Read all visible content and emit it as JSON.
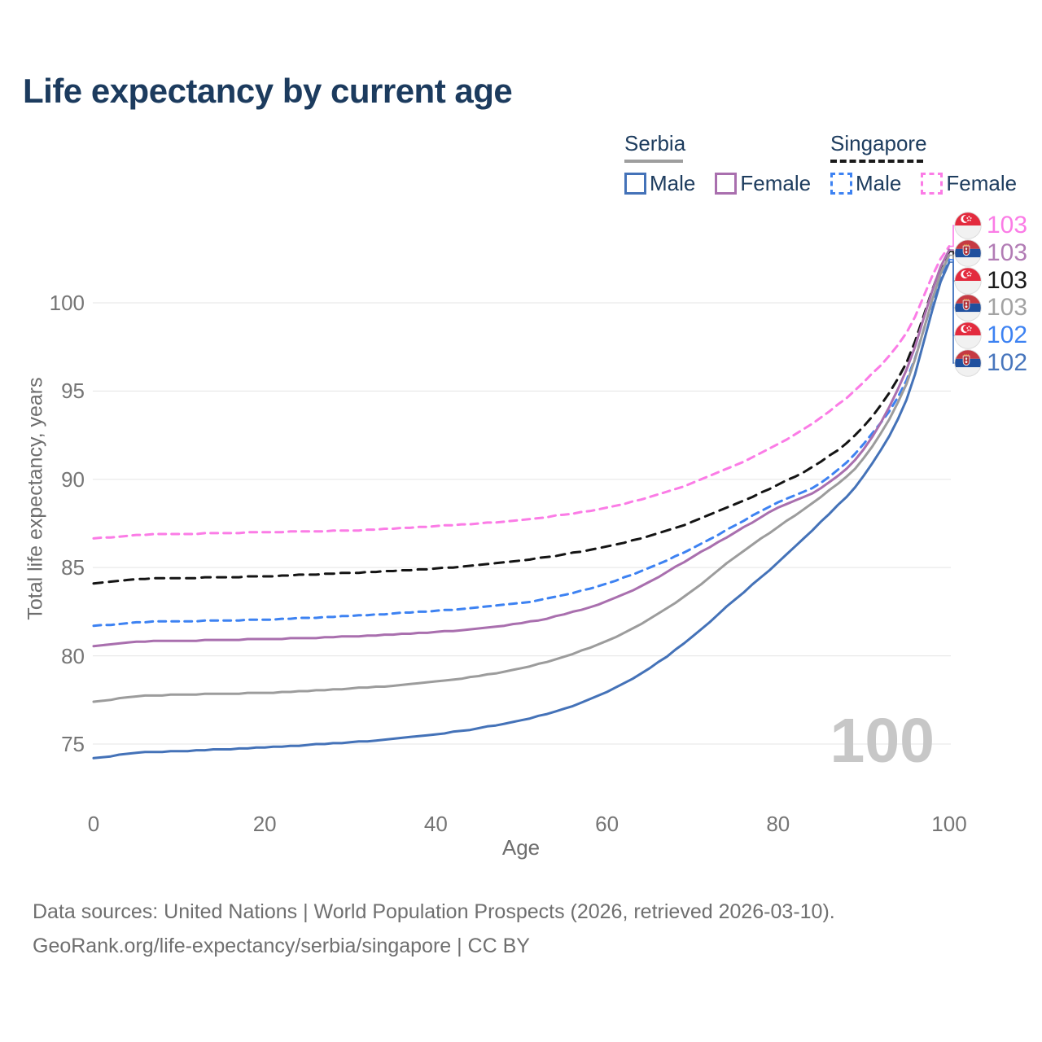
{
  "title": "Life expectancy by current age",
  "legend": {
    "groups": [
      {
        "label": "Serbia",
        "underline_color": "#9e9e9e",
        "underline_style": "solid",
        "items": [
          {
            "label": "Male",
            "color": "#4472b8",
            "dashed": false,
            "series": "serbia_male"
          },
          {
            "label": "Female",
            "color": "#a96fae",
            "dashed": false,
            "series": "serbia_female"
          }
        ]
      },
      {
        "label": "Singapore",
        "underline_color": "#1a1a1a",
        "underline_style": "dashed",
        "items": [
          {
            "label": "Male",
            "color": "#3d82f2",
            "dashed": true,
            "series": "singapore_male"
          },
          {
            "label": "Female",
            "color": "#fb7ce6",
            "dashed": true,
            "series": "singapore_female"
          }
        ]
      }
    ]
  },
  "axes": {
    "x_label": "Age",
    "y_label": "Total life expectancy, years",
    "x_ticks": [
      0,
      20,
      40,
      60,
      80,
      100
    ],
    "y_ticks": [
      75,
      80,
      85,
      90,
      95,
      100
    ],
    "xlim": [
      0,
      100
    ],
    "ylim": [
      72.5,
      104.5
    ],
    "grid": "horizontal"
  },
  "watermark": "100",
  "end_labels": [
    {
      "flag": "singapore-flag-icon",
      "value": "103",
      "color": "#fb7ce6",
      "series": "singapore_female"
    },
    {
      "flag": "serbia-flag-icon",
      "value": "103",
      "color": "#b27cb5",
      "series": "serbia_female"
    },
    {
      "flag": "singapore-flag-icon",
      "value": "103",
      "color": "#1a1a1a",
      "series": "singapore_all"
    },
    {
      "flag": "serbia-flag-icon",
      "value": "103",
      "color": "#a3a3a3",
      "series": "serbia_all"
    },
    {
      "flag": "singapore-flag-icon",
      "value": "102",
      "color": "#3d82f2",
      "series": "singapore_male"
    },
    {
      "flag": "serbia-flag-icon",
      "value": "102",
      "color": "#4876bd",
      "series": "serbia_male"
    }
  ],
  "footer": {
    "line1": "Data sources: United Nations | World Population Prospects (2026, retrieved 2026-03-10).",
    "line2": "GeoRank.org/life-expectancy/serbia/singapore | CC BY"
  },
  "chart_data": {
    "type": "line",
    "title": "Life expectancy by current age",
    "xlabel": "Age",
    "ylabel": "Total life expectancy, years",
    "x": [
      0,
      5,
      10,
      15,
      20,
      25,
      30,
      35,
      40,
      45,
      50,
      55,
      60,
      65,
      70,
      75,
      80,
      85,
      90,
      95,
      100
    ],
    "series": [
      {
        "name": "Singapore Female",
        "key": "singapore_female",
        "color": "#fb7ce6",
        "dashed": true,
        "values": [
          86.65,
          86.85,
          86.9,
          86.95,
          87.0,
          87.05,
          87.1,
          87.2,
          87.35,
          87.5,
          87.7,
          88.0,
          88.4,
          89.0,
          89.8,
          90.8,
          92.0,
          93.5,
          95.5,
          98.3,
          103.2
        ]
      },
      {
        "name": "Singapore",
        "key": "singapore_all",
        "color": "#141414",
        "dashed": true,
        "values": [
          84.1,
          84.35,
          84.4,
          84.45,
          84.5,
          84.6,
          84.7,
          84.8,
          84.95,
          85.15,
          85.4,
          85.75,
          86.2,
          86.8,
          87.6,
          88.6,
          89.7,
          91.0,
          93.0,
          96.6,
          102.9
        ]
      },
      {
        "name": "Singapore Male",
        "key": "singapore_male",
        "color": "#3d82f2",
        "dashed": true,
        "values": [
          81.7,
          81.9,
          81.95,
          82.0,
          82.05,
          82.15,
          82.25,
          82.4,
          82.55,
          82.75,
          83.0,
          83.45,
          84.1,
          85.0,
          86.1,
          87.4,
          88.7,
          89.8,
          92.0,
          95.6,
          102.45
        ]
      },
      {
        "name": "Serbia Female",
        "key": "serbia_female",
        "color": "#a96fae",
        "dashed": false,
        "values": [
          80.55,
          80.8,
          80.85,
          80.9,
          80.95,
          81.0,
          81.1,
          81.2,
          81.35,
          81.55,
          81.85,
          82.35,
          83.1,
          84.2,
          85.6,
          87.0,
          88.4,
          89.5,
          91.7,
          96.2,
          103.0
        ]
      },
      {
        "name": "Serbia",
        "key": "serbia_all",
        "color": "#9c9c9c",
        "dashed": false,
        "values": [
          77.4,
          77.7,
          77.8,
          77.85,
          77.9,
          78.0,
          78.15,
          78.3,
          78.55,
          78.85,
          79.3,
          79.95,
          80.85,
          82.1,
          83.7,
          85.6,
          87.3,
          89.0,
          91.2,
          95.4,
          102.7
        ]
      },
      {
        "name": "Serbia Male",
        "key": "serbia_male",
        "color": "#4472b8",
        "dashed": false,
        "values": [
          74.2,
          74.5,
          74.6,
          74.7,
          74.8,
          74.95,
          75.1,
          75.3,
          75.55,
          75.9,
          76.35,
          77.0,
          77.95,
          79.3,
          81.1,
          83.2,
          85.3,
          87.6,
          90.2,
          94.5,
          102.3
        ]
      }
    ],
    "legend_position": "top-right",
    "end_value_labels": {
      "singapore_female": 103,
      "serbia_female": 103,
      "singapore_all": 103,
      "serbia_all": 103,
      "singapore_male": 102,
      "serbia_male": 102
    }
  }
}
